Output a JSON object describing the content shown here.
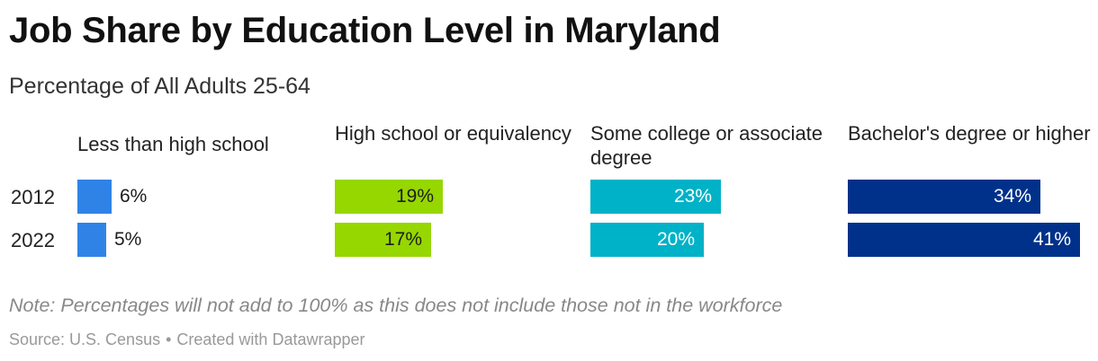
{
  "title": "Job Share by Education Level in Maryland",
  "subtitle": "Percentage of All Adults 25-64",
  "note": "Note: Percentages will not add to 100% as this does not include those not in the workforce",
  "source": {
    "label": "Source: U.S. Census",
    "separator": "•",
    "credit": "Created with Datawrapper"
  },
  "chart_data": {
    "type": "bar",
    "title": "Job Share by Education Level in Maryland",
    "subtitle": "Percentage of All Adults 25-64",
    "unit": "%",
    "xlim": [
      0,
      41
    ],
    "rows": [
      "2012",
      "2022"
    ],
    "series": [
      {
        "name": "Less than high school",
        "color": "#3083e6",
        "values": [
          6,
          5
        ],
        "labels": [
          "6%",
          "5%"
        ],
        "label_color": "#1d1d1d"
      },
      {
        "name": "High school or equivalency",
        "color": "#96d700",
        "values": [
          19,
          17
        ],
        "labels": [
          "19%",
          "17%"
        ],
        "label_color": "#1d1d1d"
      },
      {
        "name": "Some college or associate degree",
        "color": "#00b2c7",
        "values": [
          23,
          20
        ],
        "labels": [
          "23%",
          "20%"
        ],
        "label_color": "#ffffff"
      },
      {
        "name": "Bachelor's degree or higher",
        "color": "#00318a",
        "values": [
          34,
          41
        ],
        "labels": [
          "34%",
          "41%"
        ],
        "label_color": "#ffffff"
      }
    ]
  }
}
